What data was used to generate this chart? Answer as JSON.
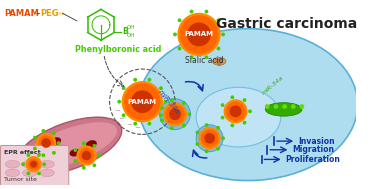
{
  "title": "Gastric carcinoma",
  "title_fontsize": 10,
  "bg_color": "#ffffff",
  "cell_color": "#aeddf0",
  "cell_outline": "#5ab0d8",
  "pamam_orange": "#ff6600",
  "green_dot": "#44cc00",
  "labels": {
    "phenylboronic": "Phenylboronic acid",
    "sialic": "Sialic acid",
    "mir34a": "miR-34a",
    "epr": "EPR effect",
    "tumor": "Tumor site",
    "proliferation": "Proliferation",
    "migration": "Migration",
    "invasion": "Invasion"
  },
  "colors": {
    "PAMAM_text": "#e84a00",
    "PEG_text": "#e8a000",
    "phenylboronic_text": "#44cc00",
    "mir34a_text": "#2244bb",
    "proliferation_text": "#1133aa",
    "migration_text": "#1133aa",
    "invasion_text": "#1133aa",
    "gastric_text": "#222222",
    "arrow_color": "#1133aa"
  }
}
